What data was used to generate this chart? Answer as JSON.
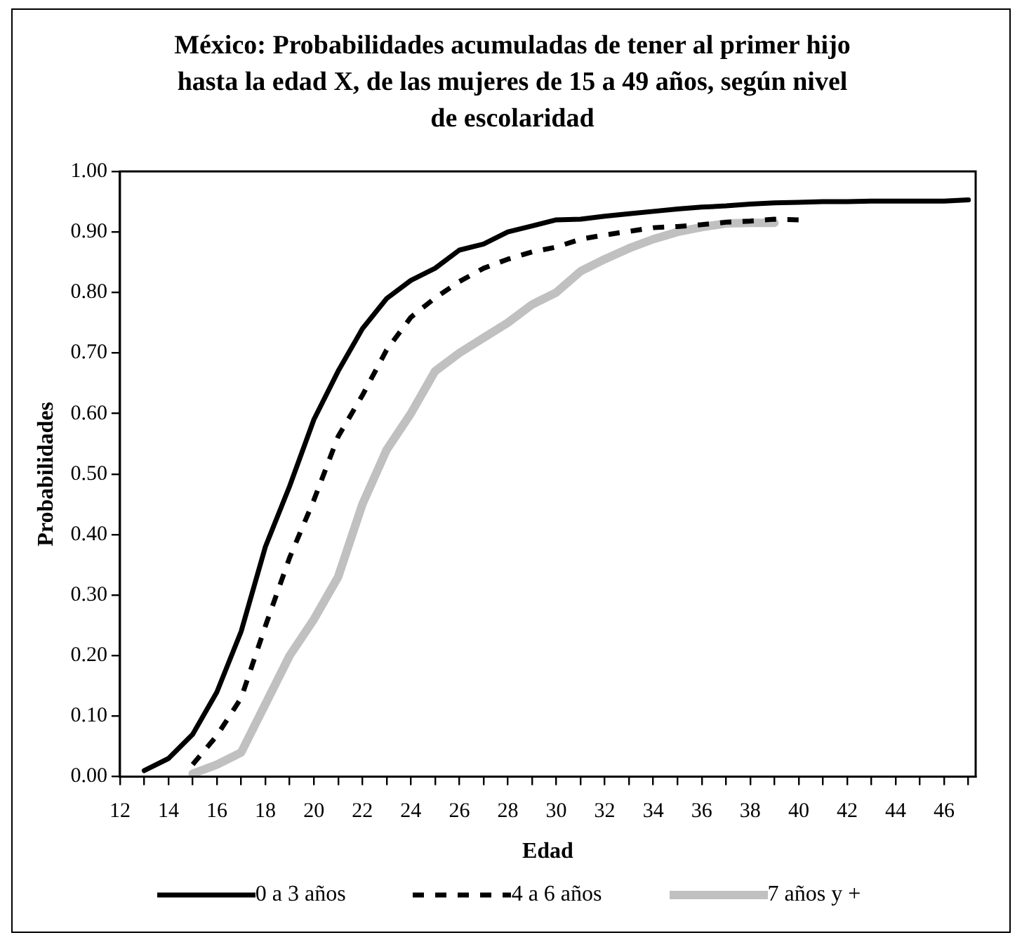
{
  "chart_data": {
    "type": "line",
    "title": "México: Probabilidades acumuladas de tener al primer hijo hasta la edad X, de las mujeres de 15 a 49 años, según nivel de escolaridad",
    "xlabel": "Edad",
    "ylabel": "Probabilidades",
    "xlim": [
      12,
      47.3
    ],
    "xticks": [
      12,
      {
        "value": 13,
        "label": null
      },
      14,
      {
        "value": 15,
        "label": null
      },
      16,
      {
        "value": 17,
        "label": null
      },
      18,
      {
        "value": 19,
        "label": null
      },
      20,
      {
        "value": 21,
        "label": null
      },
      22,
      {
        "value": 23,
        "label": null
      },
      24,
      {
        "value": 25,
        "label": null
      },
      26,
      {
        "value": 27,
        "label": null
      },
      28,
      {
        "value": 29,
        "label": null
      },
      30,
      {
        "value": 31,
        "label": null
      },
      32,
      {
        "value": 33,
        "label": null
      },
      34,
      {
        "value": 35,
        "label": null
      },
      36,
      {
        "value": 37,
        "label": null
      },
      38,
      {
        "value": 39,
        "label": null
      },
      40,
      {
        "value": 41,
        "label": null
      },
      42,
      {
        "value": 43,
        "label": null
      },
      44,
      {
        "value": 45,
        "label": null
      },
      46,
      {
        "value": 47,
        "label": null
      }
    ],
    "ylim": [
      0,
      1
    ],
    "yticks": [
      {
        "value": 0,
        "label": "0.00"
      },
      {
        "value": 0.1,
        "label": "0.10"
      },
      {
        "value": 0.2,
        "label": "0.20"
      },
      {
        "value": 0.3,
        "label": "0.30"
      },
      {
        "value": 0.4,
        "label": "0.40"
      },
      {
        "value": 0.5,
        "label": "0.50"
      },
      {
        "value": 0.6,
        "label": "0.60"
      },
      {
        "value": 0.7,
        "label": "0.70"
      },
      {
        "value": 0.8,
        "label": "0.80"
      },
      {
        "value": 0.9,
        "label": "0.90"
      },
      {
        "value": 1,
        "label": "1.00"
      }
    ],
    "grid": false,
    "legend": "bottom",
    "marker": "none",
    "series": [
      {
        "name": "0 a 3 años",
        "color": "#000000",
        "line_style": "solid",
        "x": [
          13,
          14,
          15,
          16,
          17,
          18,
          19,
          20,
          21,
          22,
          23,
          24,
          25,
          26,
          27,
          28,
          29,
          30,
          31,
          32,
          33,
          34,
          35,
          36,
          37,
          38,
          39,
          40,
          41,
          42,
          43,
          44,
          45,
          46,
          47
        ],
        "values": [
          0.01,
          0.03,
          0.07,
          0.14,
          0.24,
          0.38,
          0.48,
          0.59,
          0.67,
          0.74,
          0.79,
          0.82,
          0.84,
          0.87,
          0.88,
          0.9,
          0.91,
          0.92,
          0.921,
          0.926,
          0.93,
          0.934,
          0.938,
          0.941,
          0.943,
          0.946,
          0.948,
          0.949,
          0.95,
          0.95,
          0.951,
          0.951,
          0.951,
          0.951,
          0.953
        ]
      },
      {
        "name": "4 a 6 años",
        "color": "#000000",
        "line_style": "dashed",
        "x": [
          15,
          16,
          17,
          18,
          19,
          20,
          21,
          22,
          23,
          24,
          25,
          26,
          27,
          28,
          29,
          30,
          31,
          32,
          33,
          34,
          35,
          36,
          37,
          38,
          39,
          40
        ],
        "values": [
          0.02,
          0.068,
          0.13,
          0.249,
          0.362,
          0.457,
          0.562,
          0.63,
          0.705,
          0.759,
          0.791,
          0.818,
          0.84,
          0.855,
          0.867,
          0.875,
          0.888,
          0.895,
          0.901,
          0.907,
          0.909,
          0.912,
          0.916,
          0.918,
          0.921,
          0.92
        ]
      },
      {
        "name": "7 años y +",
        "color": "#c0c0c0",
        "line_style": "solid",
        "x": [
          15,
          16,
          17,
          18,
          19,
          20,
          21,
          22,
          23,
          24,
          25,
          26,
          27,
          28,
          29,
          30,
          31,
          32,
          33,
          34,
          35,
          36,
          37,
          38,
          39
        ],
        "values": [
          0.005,
          0.02,
          0.04,
          0.12,
          0.2,
          0.26,
          0.33,
          0.45,
          0.54,
          0.6,
          0.67,
          0.7,
          0.725,
          0.75,
          0.78,
          0.8,
          0.835,
          0.855,
          0.873,
          0.888,
          0.9,
          0.908,
          0.914,
          0.915,
          0.915
        ]
      }
    ]
  }
}
